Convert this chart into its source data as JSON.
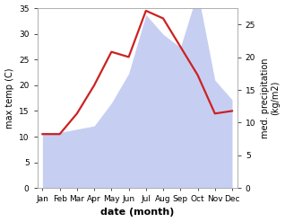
{
  "months": [
    "Jan",
    "Feb",
    "Mar",
    "Apr",
    "May",
    "Jun",
    "Jul",
    "Aug",
    "Sep",
    "Oct",
    "Nov",
    "Dec"
  ],
  "temp": [
    10.5,
    10.5,
    14.5,
    20.0,
    26.5,
    25.5,
    34.5,
    33.0,
    27.5,
    22.0,
    14.5,
    15.0
  ],
  "precip": [
    8.5,
    8.5,
    9.0,
    9.5,
    13.0,
    17.5,
    26.5,
    23.5,
    21.5,
    30.0,
    16.5,
    13.5
  ],
  "temp_ylim": [
    0,
    35
  ],
  "precip_ylim": [
    0,
    27.5
  ],
  "temp_yticks": [
    0,
    5,
    10,
    15,
    20,
    25,
    30,
    35
  ],
  "precip_yticks": [
    0,
    5,
    10,
    15,
    20,
    25
  ],
  "fill_color": "#b3c0ee",
  "fill_alpha": 0.75,
  "line_color": "#cc2222",
  "line_width": 1.6,
  "xlabel": "date (month)",
  "ylabel_left": "max temp (C)",
  "ylabel_right": "med. precipitation\n(kg/m2)",
  "bg_color": "#ffffff"
}
